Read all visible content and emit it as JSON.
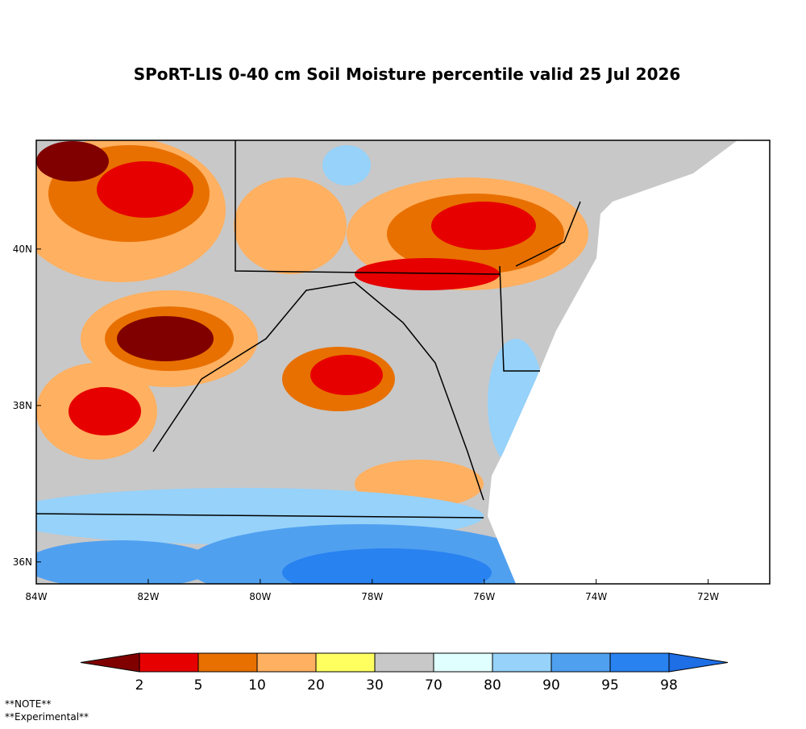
{
  "title": "SPoRT-LIS 0-40 cm Soil Moisture percentile valid 25 Jul 2026",
  "map": {
    "xlim": [
      -84,
      -70.9
    ],
    "ylim": [
      35.72,
      41.39
    ],
    "x_ticks": [
      {
        "value": -84,
        "label": "84W"
      },
      {
        "value": -82,
        "label": "82W"
      },
      {
        "value": -80,
        "label": "80W"
      },
      {
        "value": -78,
        "label": "78W"
      },
      {
        "value": -76,
        "label": "76W"
      },
      {
        "value": -74,
        "label": "74W"
      },
      {
        "value": -72,
        "label": "72W"
      }
    ],
    "y_ticks": [
      {
        "value": 36,
        "label": "36N"
      },
      {
        "value": 38,
        "label": "38N"
      },
      {
        "value": 40,
        "label": "40N"
      }
    ]
  },
  "colorbar": {
    "bounds": [
      2,
      5,
      10,
      20,
      30,
      70,
      80,
      90,
      95,
      98
    ],
    "colors": [
      "#800000",
      "#e60000",
      "#e87000",
      "#ffb060",
      "#ffff60",
      "#c8c8c8",
      "#e0ffff",
      "#96d2fa",
      "#50a0f0",
      "#2882f0",
      "#1e6ee6"
    ]
  },
  "notes": [
    "**NOTE**",
    "**Experimental**"
  ]
}
